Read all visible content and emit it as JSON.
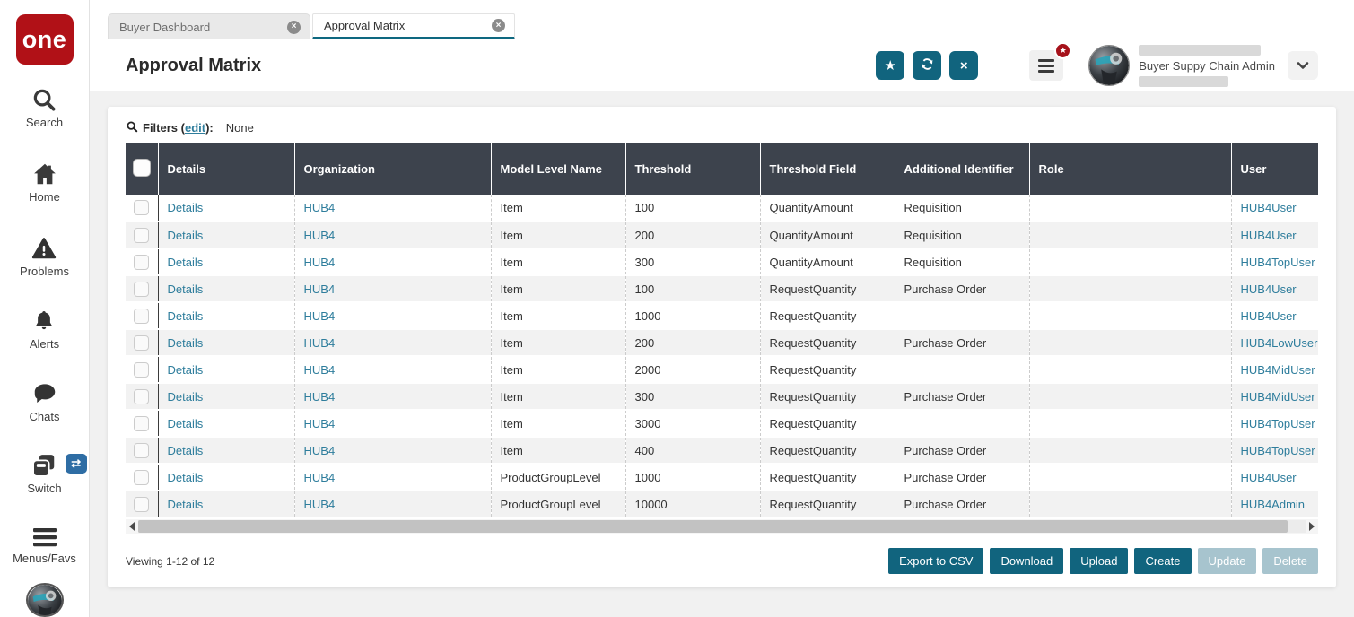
{
  "logo": {
    "text": "one"
  },
  "sidebar": {
    "items": [
      {
        "label": "Search"
      },
      {
        "label": "Home"
      },
      {
        "label": "Problems"
      },
      {
        "label": "Alerts"
      },
      {
        "label": "Chats"
      },
      {
        "label": "Switch"
      },
      {
        "label": "Menus/Favs"
      }
    ]
  },
  "tabs": [
    {
      "label": "Buyer Dashboard",
      "active": false
    },
    {
      "label": "Approval Matrix",
      "active": true
    }
  ],
  "header": {
    "title": "Approval Matrix",
    "user": {
      "role": "Buyer Suppy Chain Admin"
    }
  },
  "filters": {
    "prefix": "Filters (",
    "edit": "edit",
    "suffix": "):",
    "value": "None"
  },
  "table": {
    "columns": [
      "Details",
      "Organization",
      "Model Level Name",
      "Threshold",
      "Threshold Field",
      "Additional Identifier",
      "Role",
      "User"
    ],
    "rows": [
      {
        "details": "Details",
        "organization": "HUB4",
        "model_level_name": "Item",
        "threshold": "100",
        "threshold_field": "QuantityAmount",
        "additional_identifier": "Requisition",
        "role": "",
        "user": "HUB4User"
      },
      {
        "details": "Details",
        "organization": "HUB4",
        "model_level_name": "Item",
        "threshold": "200",
        "threshold_field": "QuantityAmount",
        "additional_identifier": "Requisition",
        "role": "",
        "user": "HUB4User"
      },
      {
        "details": "Details",
        "organization": "HUB4",
        "model_level_name": "Item",
        "threshold": "300",
        "threshold_field": "QuantityAmount",
        "additional_identifier": "Requisition",
        "role": "",
        "user": "HUB4TopUser"
      },
      {
        "details": "Details",
        "organization": "HUB4",
        "model_level_name": "Item",
        "threshold": "100",
        "threshold_field": "RequestQuantity",
        "additional_identifier": "Purchase Order",
        "role": "",
        "user": "HUB4User"
      },
      {
        "details": "Details",
        "organization": "HUB4",
        "model_level_name": "Item",
        "threshold": "1000",
        "threshold_field": "RequestQuantity",
        "additional_identifier": "",
        "role": "",
        "user": "HUB4User"
      },
      {
        "details": "Details",
        "organization": "HUB4",
        "model_level_name": "Item",
        "threshold": "200",
        "threshold_field": "RequestQuantity",
        "additional_identifier": "Purchase Order",
        "role": "",
        "user": "HUB4LowUser"
      },
      {
        "details": "Details",
        "organization": "HUB4",
        "model_level_name": "Item",
        "threshold": "2000",
        "threshold_field": "RequestQuantity",
        "additional_identifier": "",
        "role": "",
        "user": "HUB4MidUser"
      },
      {
        "details": "Details",
        "organization": "HUB4",
        "model_level_name": "Item",
        "threshold": "300",
        "threshold_field": "RequestQuantity",
        "additional_identifier": "Purchase Order",
        "role": "",
        "user": "HUB4MidUser"
      },
      {
        "details": "Details",
        "organization": "HUB4",
        "model_level_name": "Item",
        "threshold": "3000",
        "threshold_field": "RequestQuantity",
        "additional_identifier": "",
        "role": "",
        "user": "HUB4TopUser"
      },
      {
        "details": "Details",
        "organization": "HUB4",
        "model_level_name": "Item",
        "threshold": "400",
        "threshold_field": "RequestQuantity",
        "additional_identifier": "Purchase Order",
        "role": "",
        "user": "HUB4TopUser"
      },
      {
        "details": "Details",
        "organization": "HUB4",
        "model_level_name": "ProductGroupLevel",
        "threshold": "1000",
        "threshold_field": "RequestQuantity",
        "additional_identifier": "Purchase Order",
        "role": "",
        "user": "HUB4User"
      },
      {
        "details": "Details",
        "organization": "HUB4",
        "model_level_name": "ProductGroupLevel",
        "threshold": "10000",
        "threshold_field": "RequestQuantity",
        "additional_identifier": "Purchase Order",
        "role": "",
        "user": "HUB4Admin"
      }
    ]
  },
  "footer": {
    "viewing": "Viewing 1-12 of 12",
    "buttons": [
      {
        "label": "Export to CSV",
        "enabled": true
      },
      {
        "label": "Download",
        "enabled": true
      },
      {
        "label": "Upload",
        "enabled": true
      },
      {
        "label": "Create",
        "enabled": true
      },
      {
        "label": "Update",
        "enabled": false
      },
      {
        "label": "Delete",
        "enabled": false
      }
    ]
  },
  "colors": {
    "teal_button": "#11647e",
    "link_teal": "#2e7d9c",
    "table_header_bg": "#3d434d",
    "logo_red": "#b11117",
    "badge_red": "#a6121b",
    "disabled_button": "#a7c4ce",
    "active_tab_underline": "#0e6880",
    "switch_badge_blue": "#2e6da4"
  }
}
